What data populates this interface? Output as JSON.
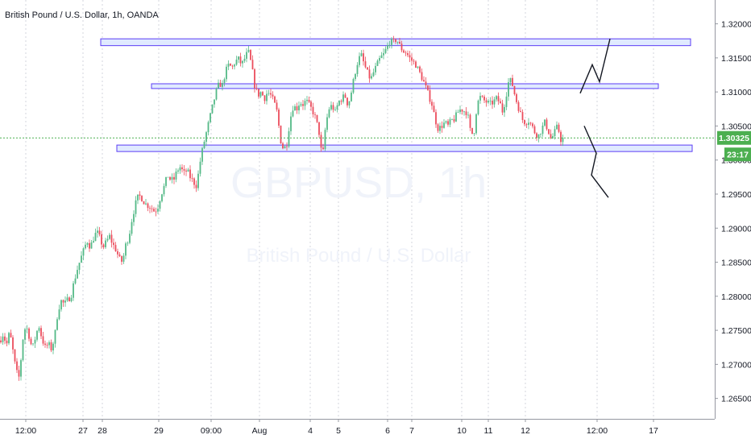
{
  "header": {
    "title": "British Pound / U.S. Dollar, 1h, OANDA"
  },
  "watermark": {
    "symbol": "GBPUSD, 1h",
    "name": "British Pound / U.S. Dollar"
  },
  "price_badge": {
    "price": "1.30325",
    "countdown": "23:17"
  },
  "colors": {
    "up": "#53b987",
    "down": "#eb4d5c",
    "zone_fill": "#dbe6ff",
    "zone_stroke": "#5b3df5",
    "price_line": "#4caf50",
    "badge_bg": "#4caf50",
    "grid": "#c9ccd6"
  },
  "chart_data": {
    "type": "candlestick",
    "ylim": [
      1.262,
      1.3235
    ],
    "y_ticks": [
      "1.32000",
      "1.31500",
      "1.31000",
      "1.30500",
      "1.30000",
      "1.29500",
      "1.29000",
      "1.28500",
      "1.28000",
      "1.27500",
      "1.27000",
      "1.26500"
    ],
    "x_ticks": [
      "12:00",
      "27",
      "28",
      "29",
      "09:00",
      "Aug",
      "4",
      "5",
      "6",
      "7",
      "10",
      "11",
      "12",
      "12:00",
      "17"
    ],
    "price_path": [
      [
        0,
        1.2735
      ],
      [
        4,
        1.2745
      ],
      [
        8,
        1.2728
      ],
      [
        12,
        1.2748
      ],
      [
        16,
        1.272
      ],
      [
        20,
        1.269
      ],
      [
        24,
        1.268
      ],
      [
        28,
        1.2735
      ],
      [
        32,
        1.2758
      ],
      [
        36,
        1.2742
      ],
      [
        40,
        1.2722
      ],
      [
        44,
        1.274
      ],
      [
        48,
        1.2758
      ],
      [
        52,
        1.2738
      ],
      [
        56,
        1.2725
      ],
      [
        60,
        1.273
      ],
      [
        64,
        1.2722
      ],
      [
        68,
        1.2742
      ],
      [
        72,
        1.278
      ],
      [
        76,
        1.2793
      ],
      [
        80,
        1.2788
      ],
      [
        84,
        1.2795
      ],
      [
        88,
        1.28
      ],
      [
        92,
        1.2822
      ],
      [
        96,
        1.284
      ],
      [
        100,
        1.2855
      ],
      [
        104,
        1.2868
      ],
      [
        108,
        1.2882
      ],
      [
        112,
        1.2872
      ],
      [
        116,
        1.2885
      ],
      [
        120,
        1.2895
      ],
      [
        124,
        1.2885
      ],
      [
        128,
        1.2872
      ],
      [
        132,
        1.288
      ],
      [
        136,
        1.2888
      ],
      [
        140,
        1.2876
      ],
      [
        144,
        1.2868
      ],
      [
        148,
        1.2855
      ],
      [
        152,
        1.285
      ],
      [
        156,
        1.2875
      ],
      [
        160,
        1.2888
      ],
      [
        164,
        1.2915
      ],
      [
        168,
        1.2935
      ],
      [
        172,
        1.2948
      ],
      [
        176,
        1.2944
      ],
      [
        180,
        1.2936
      ],
      [
        184,
        1.2933
      ],
      [
        188,
        1.293
      ],
      [
        192,
        1.2924
      ],
      [
        196,
        1.2932
      ],
      [
        200,
        1.295
      ],
      [
        204,
        1.2962
      ],
      [
        208,
        1.2978
      ],
      [
        212,
        1.297
      ],
      [
        216,
        1.2972
      ],
      [
        220,
        1.2985
      ],
      [
        224,
        1.299
      ],
      [
        228,
        1.298
      ],
      [
        232,
        1.2985
      ],
      [
        236,
        1.2975
      ],
      [
        240,
        1.2968
      ],
      [
        244,
        1.2962
      ],
      [
        248,
        1.2995
      ],
      [
        252,
        1.302
      ],
      [
        256,
        1.304
      ],
      [
        260,
        1.306
      ],
      [
        264,
        1.308
      ],
      [
        268,
        1.31
      ],
      [
        272,
        1.3112
      ],
      [
        276,
        1.311
      ],
      [
        280,
        1.313
      ],
      [
        284,
        1.314
      ],
      [
        288,
        1.3135
      ],
      [
        292,
        1.3145
      ],
      [
        296,
        1.3148
      ],
      [
        300,
        1.314
      ],
      [
        304,
        1.315
      ],
      [
        308,
        1.316
      ],
      [
        312,
        1.314
      ],
      [
        316,
        1.311
      ],
      [
        320,
        1.3095
      ],
      [
        324,
        1.31
      ],
      [
        328,
        1.309
      ],
      [
        332,
        1.31
      ],
      [
        336,
        1.3095
      ],
      [
        340,
        1.3085
      ],
      [
        344,
        1.307
      ],
      [
        348,
        1.303
      ],
      [
        352,
        1.3015
      ],
      [
        356,
        1.3025
      ],
      [
        360,
        1.306
      ],
      [
        364,
        1.308
      ],
      [
        368,
        1.3075
      ],
      [
        372,
        1.3085
      ],
      [
        376,
        1.3082
      ],
      [
        380,
        1.3087
      ],
      [
        384,
        1.308
      ],
      [
        388,
        1.3072
      ],
      [
        392,
        1.306
      ],
      [
        396,
        1.304
      ],
      [
        400,
        1.3
      ],
      [
        404,
        1.305
      ],
      [
        408,
        1.3075
      ],
      [
        412,
        1.308
      ],
      [
        416,
        1.307
      ],
      [
        420,
        1.3085
      ],
      [
        424,
        1.309
      ],
      [
        428,
        1.3095
      ],
      [
        432,
        1.308
      ],
      [
        436,
        1.31
      ],
      [
        440,
        1.3125
      ],
      [
        444,
        1.3145
      ],
      [
        448,
        1.3155
      ],
      [
        452,
        1.314
      ],
      [
        456,
        1.3128
      ],
      [
        460,
        1.3118
      ],
      [
        464,
        1.313
      ],
      [
        468,
        1.314
      ],
      [
        472,
        1.315
      ],
      [
        476,
        1.3155
      ],
      [
        480,
        1.3165
      ],
      [
        484,
        1.3175
      ],
      [
        488,
        1.3172
      ],
      [
        492,
        1.3178
      ],
      [
        496,
        1.3168
      ],
      [
        500,
        1.316
      ],
      [
        504,
        1.3158
      ],
      [
        508,
        1.315
      ],
      [
        512,
        1.3145
      ],
      [
        516,
        1.314
      ],
      [
        520,
        1.313
      ],
      [
        524,
        1.312
      ],
      [
        528,
        1.3108
      ],
      [
        532,
        1.3095
      ],
      [
        536,
        1.3082
      ],
      [
        540,
        1.306
      ],
      [
        544,
        1.3045
      ],
      [
        548,
        1.305
      ],
      [
        552,
        1.3055
      ],
      [
        556,
        1.305
      ],
      [
        560,
        1.3058
      ],
      [
        564,
        1.306
      ],
      [
        568,
        1.307
      ],
      [
        572,
        1.3075
      ],
      [
        576,
        1.3072
      ],
      [
        580,
        1.307
      ],
      [
        584,
        1.304
      ],
      [
        588,
        1.3038
      ],
      [
        592,
        1.3082
      ],
      [
        596,
        1.3092
      ],
      [
        600,
        1.3088
      ],
      [
        604,
        1.3085
      ],
      [
        608,
        1.3082
      ],
      [
        612,
        1.3085
      ],
      [
        616,
        1.309
      ],
      [
        620,
        1.3085
      ],
      [
        624,
        1.307
      ],
      [
        628,
        1.3095
      ],
      [
        632,
        1.312
      ],
      [
        636,
        1.311
      ],
      [
        640,
        1.309
      ],
      [
        644,
        1.3075
      ],
      [
        648,
        1.306
      ],
      [
        652,
        1.3055
      ],
      [
        656,
        1.3058
      ],
      [
        660,
        1.305
      ],
      [
        664,
        1.304
      ],
      [
        668,
        1.3035
      ],
      [
        672,
        1.3045
      ],
      [
        676,
        1.3055
      ],
      [
        680,
        1.3045
      ],
      [
        684,
        1.303
      ],
      [
        688,
        1.304
      ],
      [
        692,
        1.305
      ],
      [
        696,
        1.303
      ],
      [
        700,
        1.3032
      ]
    ],
    "zones": [
      {
        "name": "resistance-upper",
        "x": [
          125,
          857
        ],
        "y": [
          1.3168,
          1.3178
        ]
      },
      {
        "name": "resistance-middle",
        "x": [
          188,
          817
        ],
        "y": [
          1.3105,
          1.3112
        ]
      },
      {
        "name": "support-lower",
        "x": [
          145,
          859
        ],
        "y": [
          1.30125,
          1.3022
        ]
      }
    ],
    "projections": [
      {
        "name": "bullish-projection",
        "points": [
          [
            720,
            1.3098
          ],
          [
            735,
            1.314
          ],
          [
            744,
            1.3115
          ],
          [
            757,
            1.3178
          ]
        ]
      },
      {
        "name": "bearish-projection",
        "points": [
          [
            725,
            1.305
          ],
          [
            740,
            1.301
          ],
          [
            734,
            1.2978
          ],
          [
            755,
            1.2945
          ]
        ]
      }
    ]
  }
}
